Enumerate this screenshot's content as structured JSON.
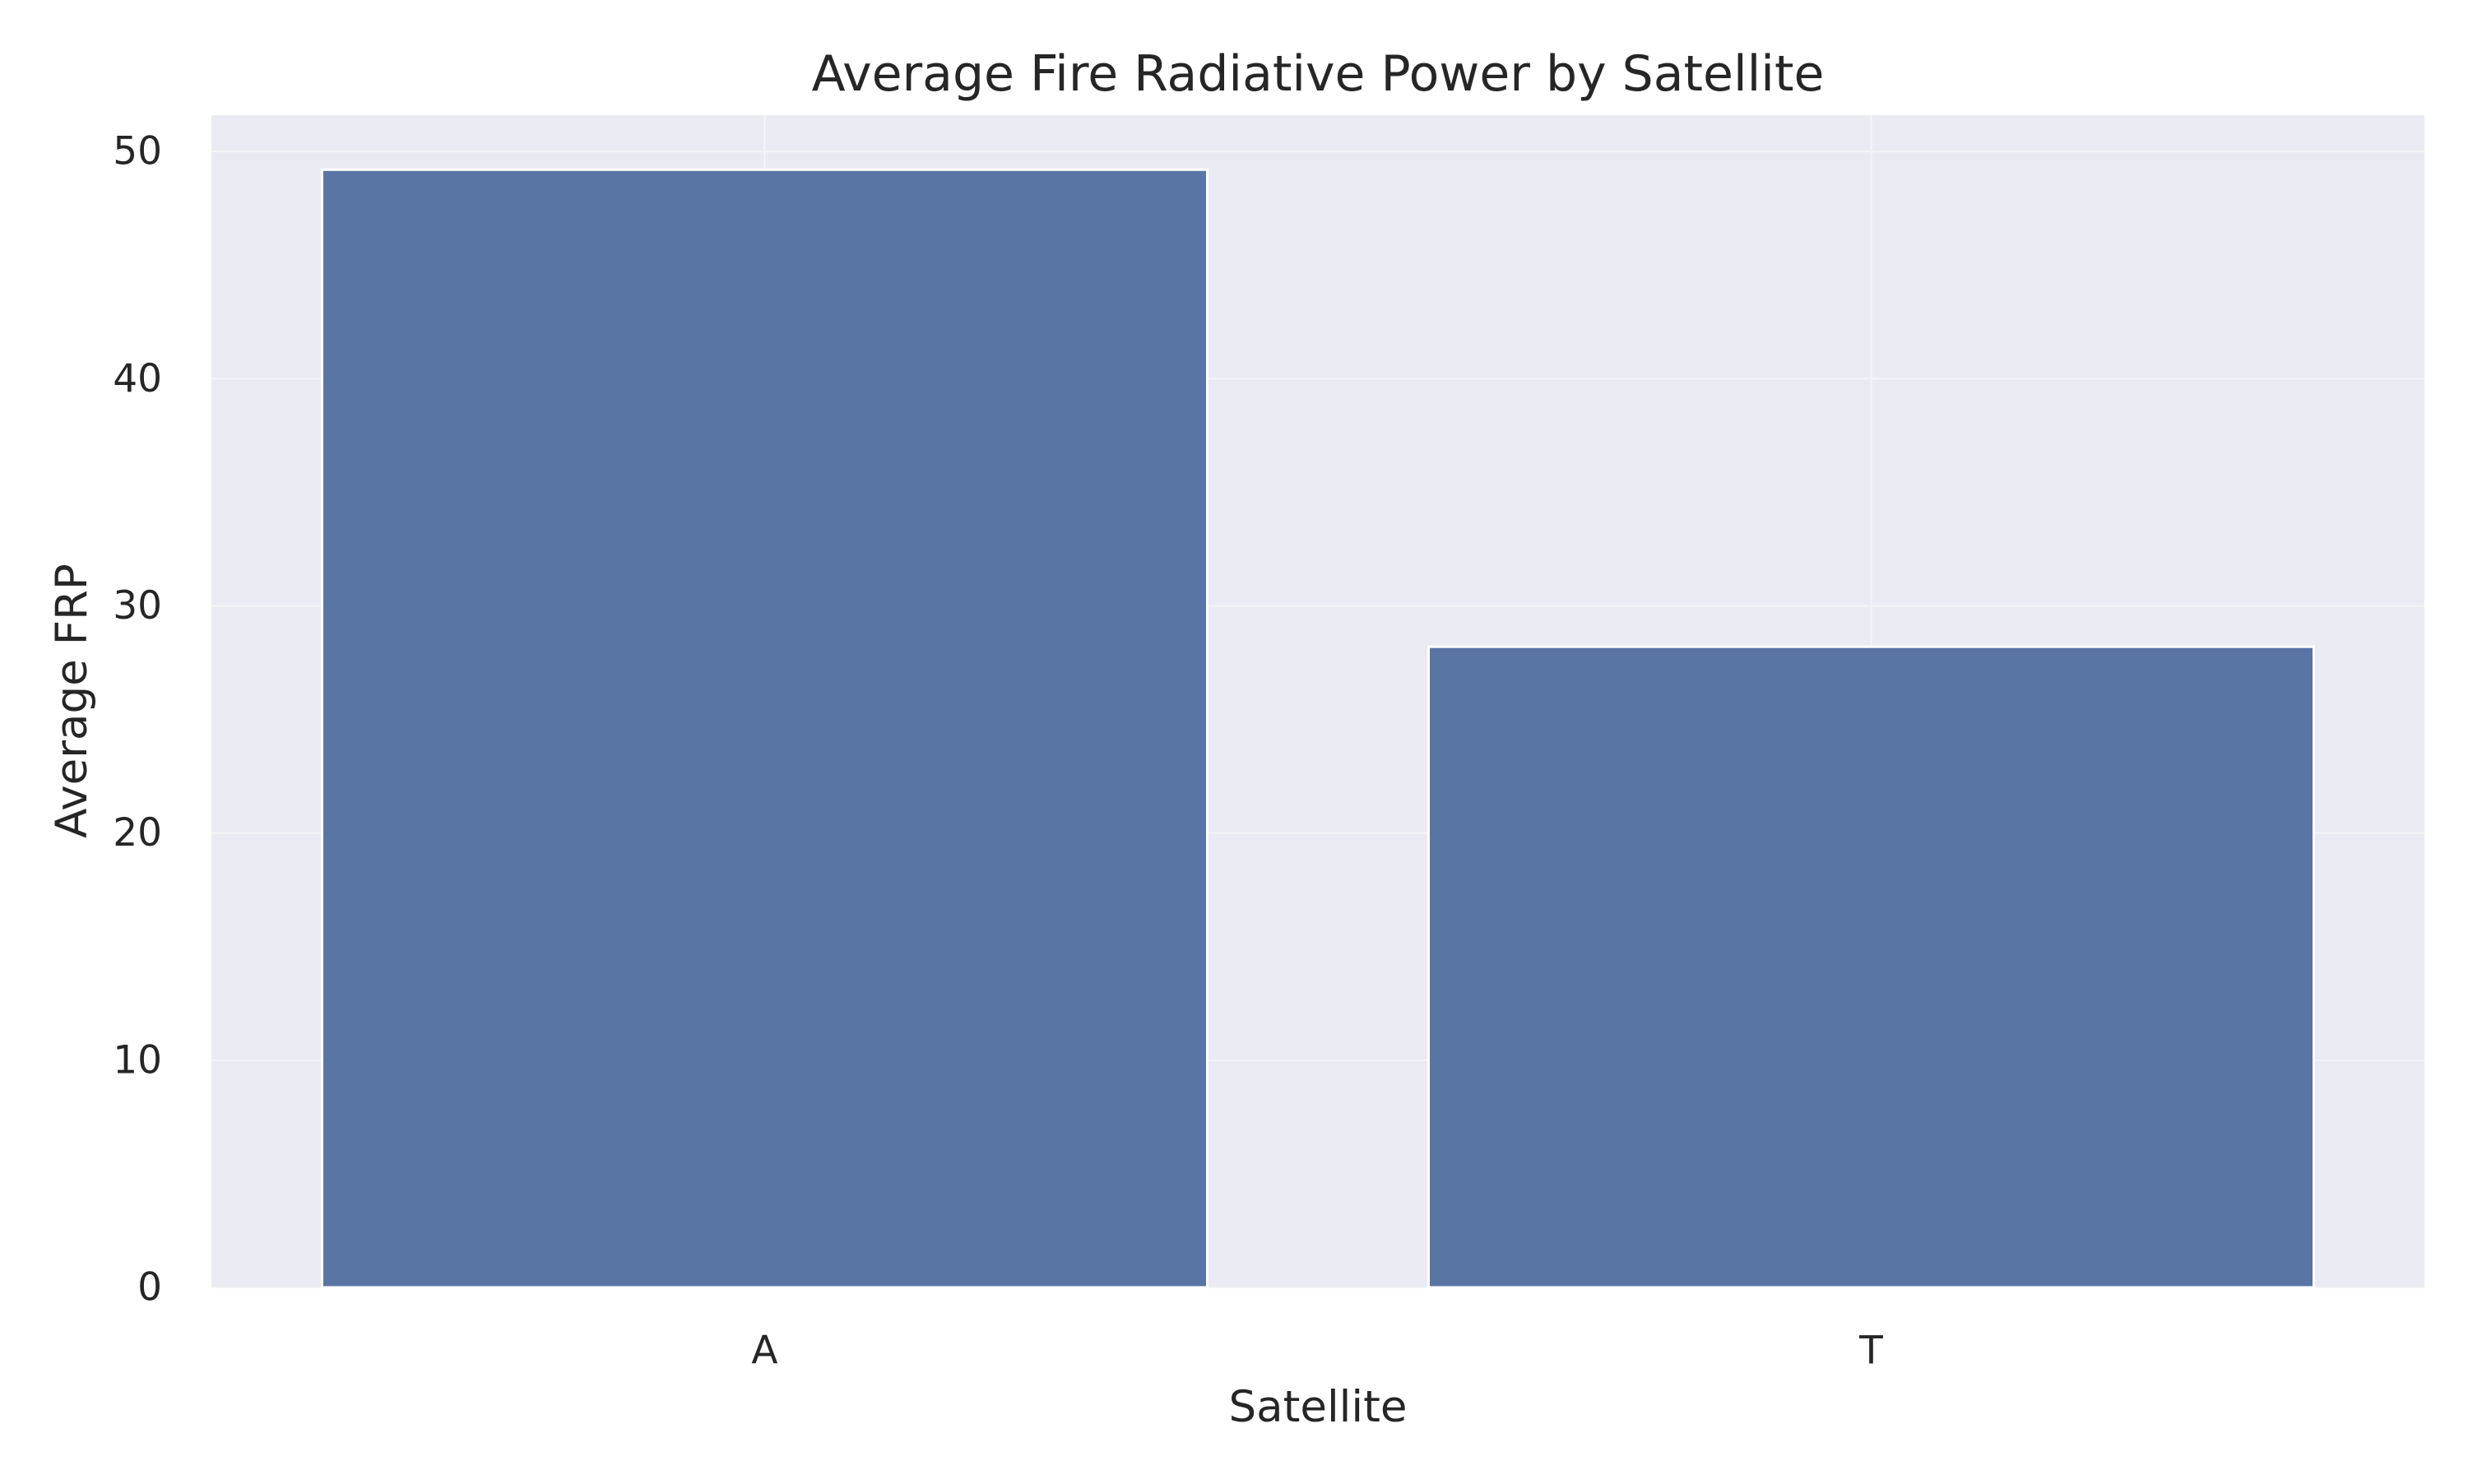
{
  "chart_data": {
    "type": "bar",
    "title": "Average Fire Radiative Power by Satellite",
    "xlabel": "Satellite",
    "ylabel": "Average FRP",
    "categories": [
      "A",
      "T"
    ],
    "values": [
      49.2,
      28.2
    ],
    "ylim": [
      0,
      51.6
    ],
    "yticks": [
      0,
      10,
      20,
      30,
      40,
      50
    ],
    "ytick_labels": [
      "0",
      "10",
      "20",
      "30",
      "40",
      "50"
    ],
    "grid": true,
    "legend": false,
    "colors": {
      "bar": "#5975a4",
      "plot_background": "#eaeaf2",
      "grid": "#f4f4f8",
      "text": "#262626"
    }
  }
}
